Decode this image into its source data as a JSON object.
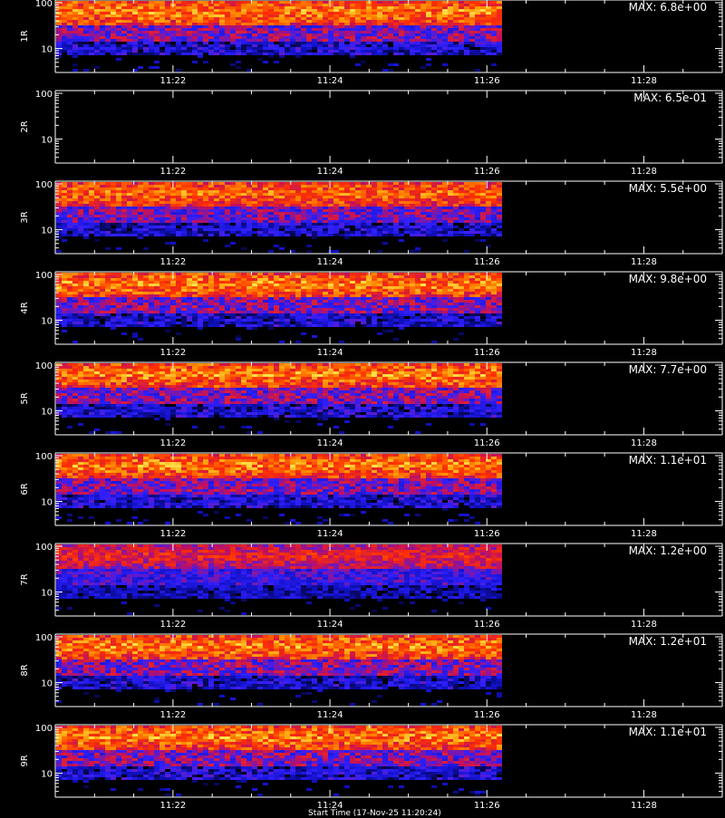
{
  "chart_data": [
    {
      "type": "heatmap",
      "ylabel": "1R",
      "max_label": "MAX: 6.8e+00",
      "intensity": 1.0
    },
    {
      "type": "heatmap",
      "ylabel": "2R",
      "max_label": "MAX: 6.5e-01",
      "intensity": 0.0
    },
    {
      "type": "heatmap",
      "ylabel": "3R",
      "max_label": "MAX: 5.5e+00",
      "intensity": 0.95
    },
    {
      "type": "heatmap",
      "ylabel": "4R",
      "max_label": "MAX: 9.8e+00",
      "intensity": 1.0
    },
    {
      "type": "heatmap",
      "ylabel": "5R",
      "max_label": "MAX: 7.7e+00",
      "intensity": 1.0
    },
    {
      "type": "heatmap",
      "ylabel": "6R",
      "max_label": "MAX: 1.1e+01",
      "intensity": 1.0
    },
    {
      "type": "heatmap",
      "ylabel": "7R",
      "max_label": "MAX: 1.2e+00",
      "intensity": 0.75
    },
    {
      "type": "heatmap",
      "ylabel": "8R",
      "max_label": "MAX: 1.2e+01",
      "intensity": 1.0
    },
    {
      "type": "heatmap",
      "ylabel": "9R",
      "max_label": "MAX: 1.1e+01",
      "intensity": 1.0
    }
  ],
  "axes": {
    "x_ticks": [
      "11:22",
      "11:24",
      "11:26",
      "11:28"
    ],
    "x_range": [
      "11:20:30",
      "11:29:00"
    ],
    "data_end": "11:26:10",
    "y_ticks": [
      "100",
      "10"
    ],
    "y_scale": "log"
  },
  "colors": {
    "background": "#000000",
    "axes": "#ffffff",
    "colormap": [
      "#000000",
      "#1010c0",
      "#3020ff",
      "#c01060",
      "#ff3000",
      "#ff9000",
      "#ffff60"
    ]
  },
  "caption": "Start Time (17-Nov-25 11:20:24)"
}
